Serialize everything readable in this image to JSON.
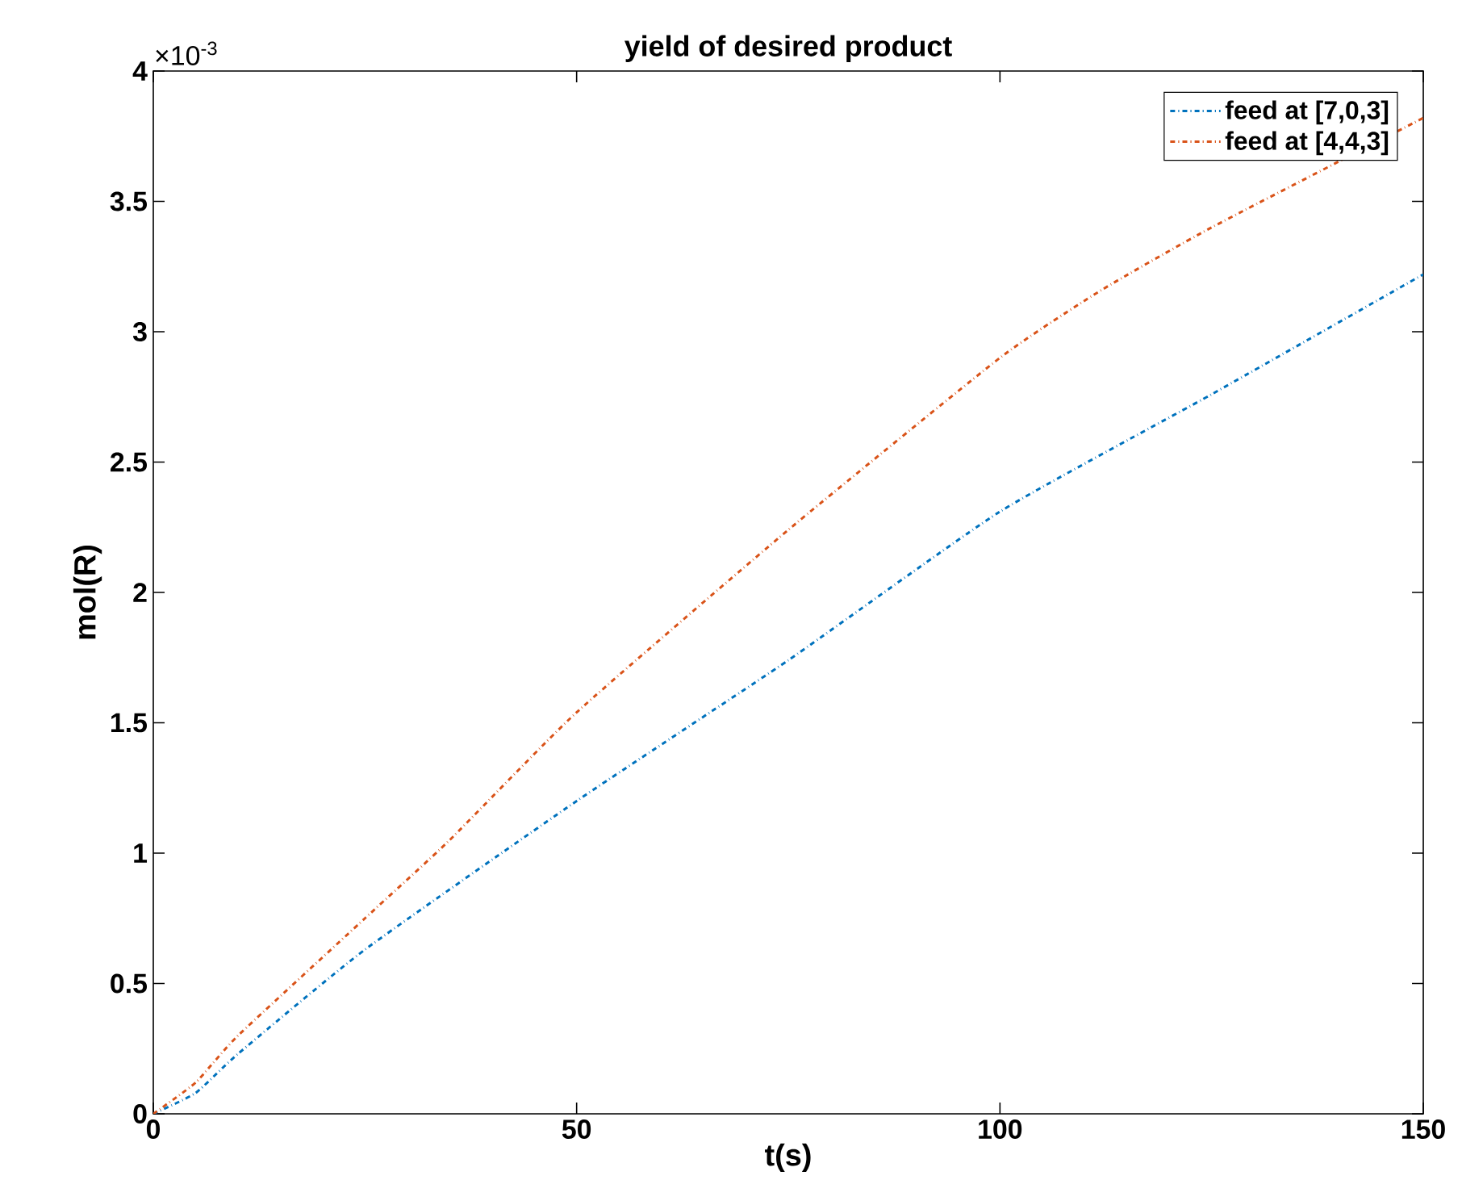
{
  "chart_data": {
    "type": "line",
    "title": "yield of desired product",
    "xlabel": "t(s)",
    "ylabel": "mol(R)",
    "annotations": [
      "×10$^{-3}$"
    ],
    "x": [
      0,
      5,
      10,
      25,
      35,
      50,
      75,
      100,
      112,
      125,
      150
    ],
    "series": [
      {
        "name": "feed at [7,0,3]",
        "color": "#0072bd",
        "x": [
          0,
          5,
          10,
          25,
          50,
          75,
          100,
          125,
          150
        ],
        "values": [
          0,
          0.08,
          0.23,
          0.63,
          1.2,
          1.74,
          2.31,
          2.76,
          3.22
        ]
      },
      {
        "name": "feed at [4,4,3]",
        "color": "#d95319",
        "values": [
          0,
          0.12,
          0.3,
          0.75,
          1.05,
          1.54,
          2.24,
          2.9,
          3.16,
          3.4,
          3.82
        ]
      }
    ],
    "xlim": [
      0,
      150
    ],
    "ylim": [
      0,
      4
    ],
    "xticks": [
      0,
      50,
      100,
      150
    ],
    "yticks": [
      0,
      0.5,
      1,
      1.5,
      2,
      2.5,
      3,
      3.5,
      4
    ],
    "legend": "top right",
    "grid": false,
    "line_style": "dashdot",
    "marker": "none"
  }
}
